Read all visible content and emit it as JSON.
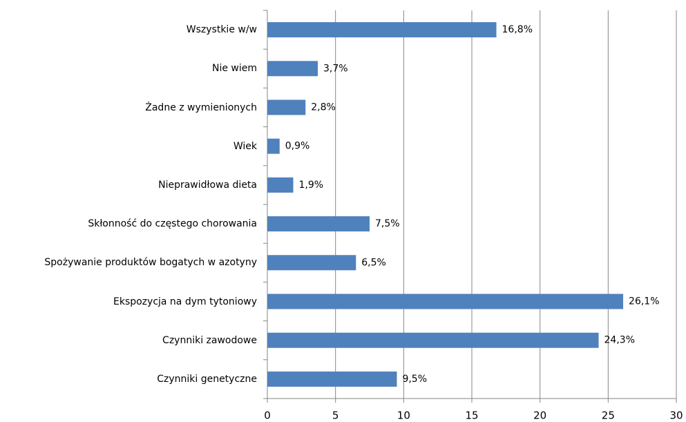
{
  "chart_data": {
    "type": "bar",
    "orientation": "horizontal",
    "categories": [
      "Wszystkie w/w",
      "Nie wiem",
      "Żadne z wymienionych",
      "Wiek",
      "Nieprawidłowa dieta",
      "Skłonność do częstego chorowania",
      "Spożywanie produktów bogatych w azotyny",
      "Ekspozycja na dym tytoniowy",
      "Czynniki zawodowe",
      "Czynniki genetyczne"
    ],
    "values": [
      16.8,
      3.7,
      2.8,
      0.9,
      1.9,
      7.5,
      6.5,
      26.1,
      24.3,
      9.5
    ],
    "value_labels": [
      "16,8%",
      "3,7%",
      "2,8%",
      "0,9%",
      "1,9%",
      "7,5%",
      "6,5%",
      "26,1%",
      "24,3%",
      "9,5%"
    ],
    "color": "#4f81bd",
    "xlim": [
      0,
      30
    ],
    "xticks": [
      0,
      5,
      10,
      15,
      20,
      25,
      30
    ],
    "grid": true
  }
}
